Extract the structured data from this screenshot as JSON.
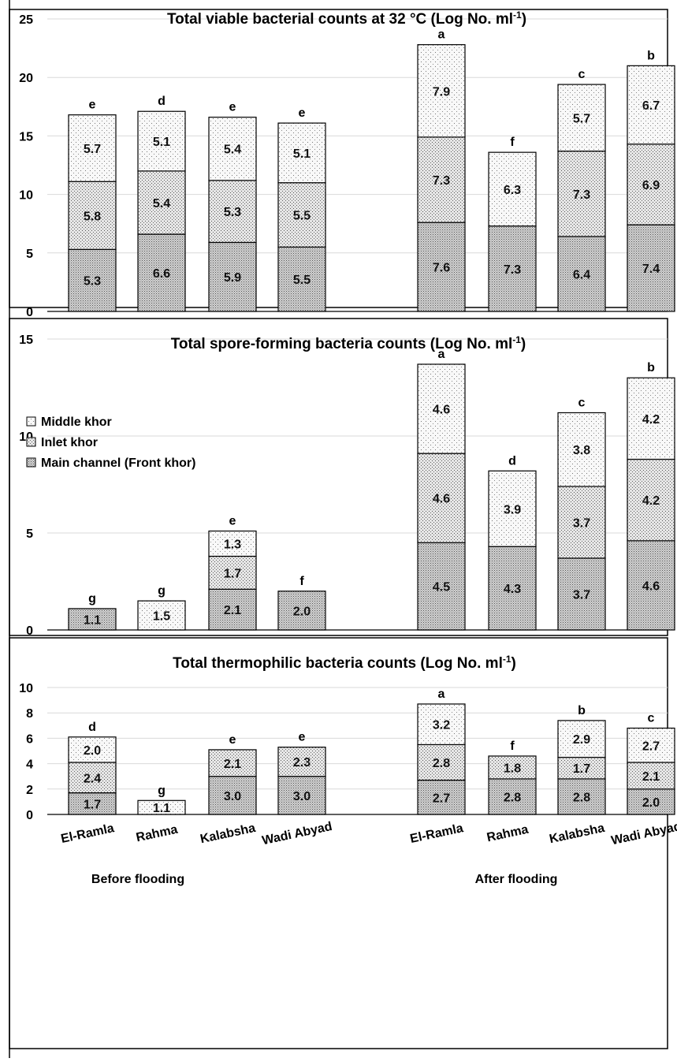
{
  "chart_data": [
    {
      "type": "bar",
      "stacked": true,
      "title": "Total viable bacterial counts at 32 °C (Log No. ml",
      "title_superscript": "-1",
      "title_close": ")",
      "categories": [
        "El-Ramla",
        "Rahma",
        "Kalabsha",
        "Wadi Abyad",
        "El-Ramla",
        "Rahma",
        "Kalabsha",
        "Wadi Abyad"
      ],
      "series": [
        {
          "name": "Main channel (Front khor)",
          "values": [
            5.3,
            6.6,
            5.9,
            5.5,
            7.6,
            7.3,
            6.4,
            7.4
          ]
        },
        {
          "name": "Inlet khor",
          "values": [
            5.8,
            5.4,
            5.3,
            5.5,
            7.3,
            null,
            7.3,
            6.9
          ]
        },
        {
          "name": "Middle khor",
          "values": [
            5.7,
            5.1,
            5.4,
            5.1,
            7.9,
            6.3,
            5.7,
            6.7
          ]
        }
      ],
      "significance_letters": [
        "e",
        "d",
        "e",
        "e",
        "a",
        "f",
        "c",
        "b"
      ],
      "ylim": [
        0,
        25
      ],
      "yticks": [
        "0",
        "5",
        "10",
        "15",
        "20",
        "25"
      ],
      "grid": true
    },
    {
      "type": "bar",
      "stacked": true,
      "title": "Total spore-forming bacteria counts (Log No. ml",
      "title_superscript": "-1",
      "title_close": ")",
      "categories": [
        "El-Ramla",
        "Rahma",
        "Kalabsha",
        "Wadi Abyad",
        "El-Ramla",
        "Rahma",
        "Kalabsha",
        "Wadi Abyad"
      ],
      "series": [
        {
          "name": "Main channel (Front khor)",
          "values": [
            1.1,
            null,
            2.1,
            2.0,
            4.5,
            4.3,
            3.7,
            4.6
          ]
        },
        {
          "name": "Inlet khor",
          "values": [
            null,
            null,
            1.7,
            null,
            4.6,
            null,
            3.7,
            4.2
          ]
        },
        {
          "name": "Middle khor",
          "values": [
            null,
            1.5,
            1.3,
            null,
            4.6,
            3.9,
            3.8,
            4.2
          ]
        }
      ],
      "significance_letters": [
        "g",
        "g",
        "e",
        "f",
        "a",
        "d",
        "c",
        "b"
      ],
      "ylim": [
        0,
        15
      ],
      "yticks": [
        "0",
        "5",
        "10",
        "15"
      ],
      "legend": {
        "position": "left",
        "entries": [
          "Middle khor",
          "Inlet khor",
          "Main channel (Front khor)"
        ]
      },
      "grid": true
    },
    {
      "type": "bar",
      "stacked": true,
      "title": "Total thermophilic bacteria counts (Log No. ml",
      "title_superscript": "-1",
      "title_close": ")",
      "categories": [
        "El-Ramla",
        "Rahma",
        "Kalabsha",
        "Wadi Abyad",
        "El-Ramla",
        "Rahma",
        "Kalabsha",
        "Wadi Abyad"
      ],
      "series": [
        {
          "name": "Main channel (Front khor)",
          "values": [
            1.7,
            null,
            3.0,
            3.0,
            2.7,
            2.8,
            2.8,
            2.0
          ]
        },
        {
          "name": "Inlet khor",
          "values": [
            2.4,
            null,
            2.1,
            2.3,
            2.8,
            1.8,
            1.7,
            2.1
          ]
        },
        {
          "name": "Middle khor",
          "values": [
            2.0,
            1.1,
            null,
            null,
            3.2,
            null,
            2.9,
            2.7
          ]
        }
      ],
      "significance_letters": [
        "d",
        "g",
        "e",
        "e",
        "a",
        "f",
        "b",
        "c"
      ],
      "ylim": [
        0,
        10
      ],
      "yticks": [
        "0",
        "2",
        "4",
        "6",
        "8",
        "10"
      ],
      "group_labels": [
        "Before flooding",
        "After flooding"
      ],
      "grid": true
    }
  ],
  "colors": {
    "main_channel": "#d2d2d2",
    "inlet_khor": "#e4e4e4",
    "middle_khor": "#f6f6f6",
    "stipple": "#6a6a6a",
    "grid": "#d9d9d9",
    "text": "#000000"
  }
}
